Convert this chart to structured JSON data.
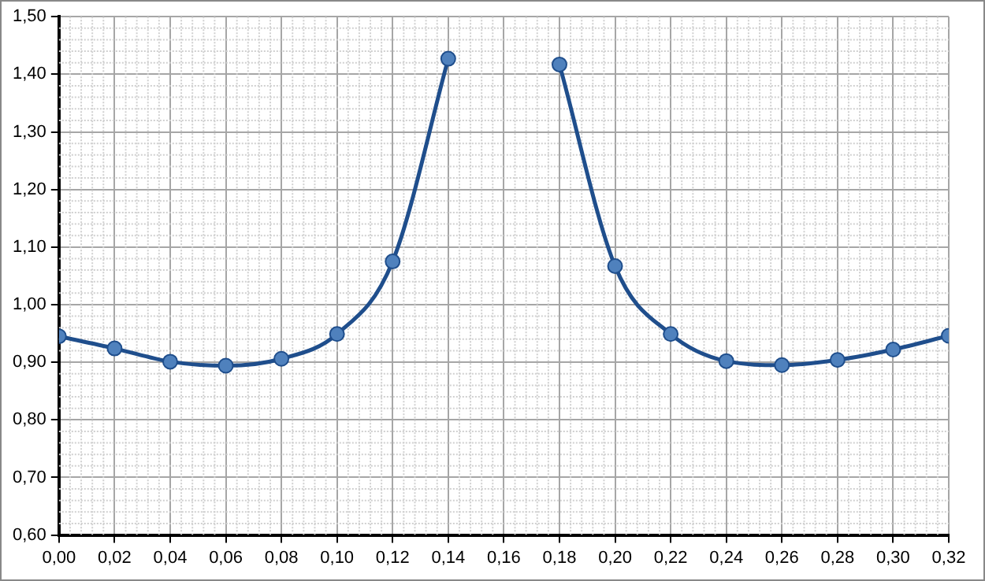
{
  "chart_data": {
    "type": "line",
    "x": [
      0,
      0.02,
      0.04,
      0.06,
      0.08,
      0.1,
      0.12,
      0.14,
      0.16,
      0.18,
      0.2,
      0.22,
      0.24,
      0.26,
      0.28,
      0.3,
      0.32
    ],
    "series": [
      {
        "color": "#1f4e8c",
        "values": [
          0.945,
          0.924,
          0.901,
          0.894,
          0.906,
          0.949,
          1.075,
          1.427,
          null,
          1.417,
          1.067,
          0.949,
          0.902,
          0.895,
          0.904,
          0.922,
          0.946
        ]
      }
    ],
    "xlim": [
      0,
      0.32
    ],
    "xticks": [
      {
        "value": 0,
        "label": "0,00"
      },
      {
        "value": 0.02,
        "label": "0,02"
      },
      {
        "value": 0.04,
        "label": "0,04"
      },
      {
        "value": 0.06,
        "label": "0,06"
      },
      {
        "value": 0.08,
        "label": "0,08"
      },
      {
        "value": 0.1,
        "label": "0,10"
      },
      {
        "value": 0.12,
        "label": "0,12"
      },
      {
        "value": 0.14,
        "label": "0,14"
      },
      {
        "value": 0.16,
        "label": "0,16"
      },
      {
        "value": 0.18,
        "label": "0,18"
      },
      {
        "value": 0.2,
        "label": "0,20"
      },
      {
        "value": 0.22,
        "label": "0,22"
      },
      {
        "value": 0.24,
        "label": "0,24"
      },
      {
        "value": 0.26,
        "label": "0,26"
      },
      {
        "value": 0.28,
        "label": "0,28"
      },
      {
        "value": 0.3,
        "label": "0,30"
      },
      {
        "value": 0.32,
        "label": "0,32"
      }
    ],
    "ylim": [
      0.6,
      1.5
    ],
    "yticks": [
      {
        "value": 0.6,
        "label": "0,60"
      },
      {
        "value": 0.7,
        "label": "0,70"
      },
      {
        "value": 0.8,
        "label": "0,80"
      },
      {
        "value": 0.9,
        "label": "0,90"
      },
      {
        "value": 1.0,
        "label": "1,00"
      },
      {
        "value": 1.1,
        "label": "1,10"
      },
      {
        "value": 1.2,
        "label": "1,20"
      },
      {
        "value": 1.3,
        "label": "1,30"
      },
      {
        "value": 1.4,
        "label": "1,40"
      },
      {
        "value": 1.5,
        "label": "1,50"
      }
    ],
    "grid": true,
    "legend": false,
    "marker": "circle",
    "line_style": "solid"
  }
}
